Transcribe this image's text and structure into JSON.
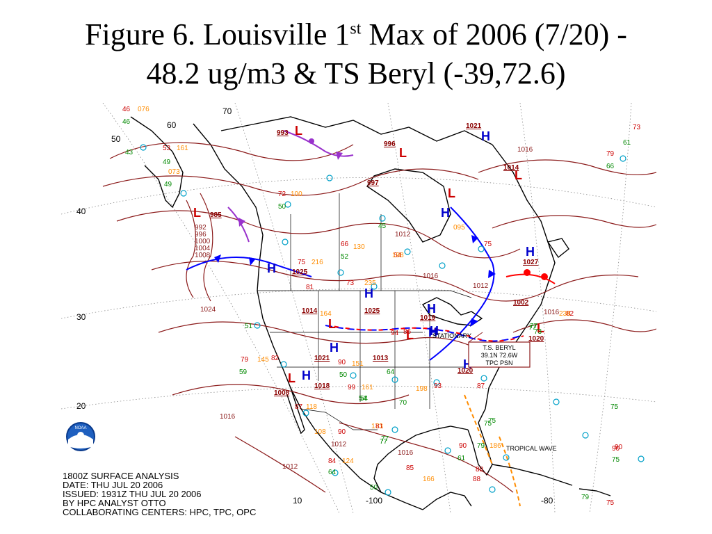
{
  "slide": {
    "title_part1": "Figure 6. Louisville 1",
    "title_sup": "st",
    "title_part2": " Max of 2006 (7/20) -",
    "title_line2": "48.2 ug/m3 & TS Beryl (-39,72.6)"
  },
  "map": {
    "colors": {
      "isobar": "#8b1a1a",
      "land": "#000000",
      "high": "#0000cc",
      "low": "#cc0000",
      "cold_front": "#0000ff",
      "warm_front": "#ff0000",
      "occluded": "#9932cc",
      "temp": "#cc0000",
      "dew": "#008800",
      "pressure": "#ff8c00",
      "station": "#00a0c8"
    },
    "lat_labels": [
      "40",
      "30",
      "20",
      "50"
    ],
    "lon_labels": [
      "-100",
      "-80",
      "10",
      "60",
      "70"
    ],
    "highs": [
      "H",
      "H",
      "H",
      "H",
      "H",
      "H",
      "H",
      "H",
      "H",
      "H",
      "H",
      "H"
    ],
    "lows": [
      "L",
      "L",
      "L",
      "L",
      "L",
      "L",
      "L",
      "L",
      "L"
    ],
    "center_pressures": [
      "1021",
      "1014",
      "1027",
      "1002",
      "1020",
      "1025",
      "1014",
      "1025",
      "1019",
      "1021",
      "1013",
      "1018",
      "1020",
      "1008",
      "993",
      "996",
      "997",
      "985"
    ],
    "isobar_labels": [
      "1016",
      "1024",
      "1016",
      "1012",
      "1016",
      "1012",
      "1000",
      "1004",
      "1008",
      "992",
      "996",
      "1012",
      "1016",
      "1016",
      "1012"
    ],
    "storm_box": {
      "line1": "T.S. BERYL",
      "line2": "39.1N 72.6W",
      "line3": "TPC PSN"
    },
    "stationary_front_label": "STATIONARY",
    "tropical_wave_label": "TROPICAL WAVE",
    "temps": [
      "46",
      "53",
      "79",
      "72",
      "75",
      "81",
      "73",
      "82",
      "90",
      "99",
      "87",
      "90",
      "84",
      "81",
      "90",
      "88",
      "93",
      "86",
      "87",
      "90",
      "88",
      "75",
      "82",
      "73",
      "79",
      "85",
      "94",
      "66",
      "64",
      "75",
      "90"
    ],
    "dews": [
      "46",
      "43",
      "49",
      "49",
      "50",
      "45",
      "52",
      "59",
      "51",
      "50",
      "64",
      "54",
      "70",
      "77",
      "75",
      "79",
      "61",
      "73",
      "75",
      "66",
      "77",
      "61",
      "77",
      "50",
      "64",
      "54",
      "75",
      "77",
      "79",
      "75"
    ],
    "pressures": [
      "076",
      "161",
      "100",
      "216",
      "235",
      "164",
      "198",
      "108",
      "124",
      "166",
      "198",
      "161",
      "145",
      "186",
      "130",
      "151",
      "238",
      "095",
      "073",
      "173",
      "118"
    ]
  },
  "info": {
    "line1": "1800Z SURFACE ANALYSIS",
    "line2": "DATE: THU JUL 20 2006",
    "line3": "ISSUED: 1931Z THU JUL 20 2006",
    "line4": "BY HPC ANALYST OTTO",
    "line5": "COLLABORATING CENTERS: HPC, TPC, OPC"
  },
  "logo": {
    "text": "NOAA"
  }
}
